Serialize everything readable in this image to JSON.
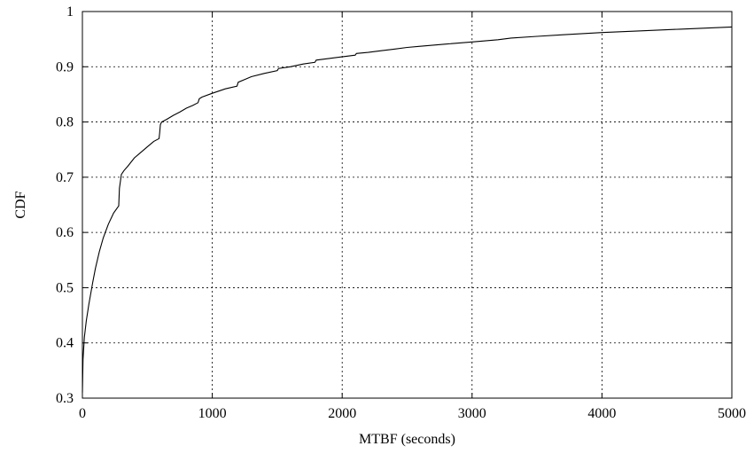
{
  "chart_data": {
    "type": "line",
    "title": "",
    "xlabel": "MTBF (seconds)",
    "ylabel": "CDF",
    "xlim": [
      0,
      5000
    ],
    "ylim": [
      0.3,
      1.0
    ],
    "xticks": [
      0,
      1000,
      2000,
      3000,
      4000,
      5000
    ],
    "yticks": [
      0.3,
      0.4,
      0.5,
      0.6,
      0.7,
      0.8,
      0.9,
      1.0
    ],
    "xtick_labels": [
      "0",
      "1000",
      "2000",
      "3000",
      "4000",
      "5000"
    ],
    "ytick_labels": [
      "0.3",
      "0.4",
      "0.5",
      "0.6",
      "0.7",
      "0.8",
      "0.9",
      "1"
    ],
    "grid": true,
    "legend": "none",
    "series": [
      {
        "color": "#000000",
        "x": [
          0,
          5,
          15,
          30,
          50,
          80,
          100,
          130,
          160,
          200,
          240,
          280,
          285,
          300,
          320,
          350,
          400,
          450,
          500,
          550,
          590,
          595,
          600,
          610,
          650,
          700,
          750,
          800,
          850,
          890,
          900,
          920,
          1000,
          1100,
          1190,
          1200,
          1250,
          1300,
          1400,
          1500,
          1510,
          1600,
          1700,
          1790,
          1800,
          1900,
          2000,
          2100,
          2110,
          2200,
          2300,
          2400,
          2500,
          2600,
          2800,
          3000,
          3200,
          3300,
          3500,
          3700,
          4000,
          4300,
          4600,
          5000
        ],
        "y": [
          0.31,
          0.37,
          0.41,
          0.44,
          0.47,
          0.51,
          0.535,
          0.565,
          0.59,
          0.615,
          0.635,
          0.648,
          0.68,
          0.705,
          0.712,
          0.72,
          0.735,
          0.745,
          0.755,
          0.765,
          0.77,
          0.78,
          0.795,
          0.8,
          0.805,
          0.812,
          0.818,
          0.825,
          0.83,
          0.835,
          0.842,
          0.845,
          0.852,
          0.86,
          0.865,
          0.872,
          0.877,
          0.882,
          0.888,
          0.893,
          0.897,
          0.9,
          0.905,
          0.908,
          0.912,
          0.915,
          0.918,
          0.921,
          0.924,
          0.926,
          0.929,
          0.932,
          0.935,
          0.937,
          0.941,
          0.945,
          0.949,
          0.952,
          0.955,
          0.958,
          0.962,
          0.965,
          0.968,
          0.972
        ]
      }
    ]
  }
}
